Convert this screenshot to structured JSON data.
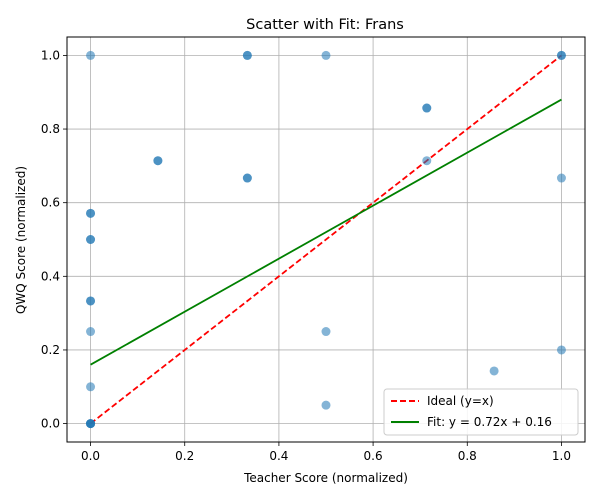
{
  "chart_data": {
    "type": "scatter",
    "title": "Scatter with Fit: Frans",
    "xlabel": "Teacher Score (normalized)",
    "ylabel": "QWQ Score (normalized)",
    "xlim": [
      -0.05,
      1.05
    ],
    "ylim": [
      -0.05,
      1.05
    ],
    "xticks": [
      0.0,
      0.2,
      0.4,
      0.6,
      0.8,
      1.0
    ],
    "yticks": [
      0.0,
      0.2,
      0.4,
      0.6,
      0.8,
      1.0
    ],
    "xtick_labels": [
      "0.0",
      "0.2",
      "0.4",
      "0.6",
      "0.8",
      "1.0"
    ],
    "ytick_labels": [
      "0.0",
      "0.2",
      "0.4",
      "0.6",
      "0.8",
      "1.0"
    ],
    "grid": true,
    "legend_position": "bottom-right",
    "point_color": "#1f77b4",
    "points": [
      {
        "x": 0.0,
        "y": 1.0
      },
      {
        "x": 0.333,
        "y": 1.0
      },
      {
        "x": 0.333,
        "y": 1.0
      },
      {
        "x": 0.5,
        "y": 1.0
      },
      {
        "x": 1.0,
        "y": 1.0
      },
      {
        "x": 1.0,
        "y": 1.0
      },
      {
        "x": 0.714,
        "y": 0.857
      },
      {
        "x": 0.714,
        "y": 0.857
      },
      {
        "x": 0.143,
        "y": 0.714
      },
      {
        "x": 0.143,
        "y": 0.714
      },
      {
        "x": 0.714,
        "y": 0.714
      },
      {
        "x": 0.333,
        "y": 0.667
      },
      {
        "x": 0.333,
        "y": 0.667
      },
      {
        "x": 1.0,
        "y": 0.667
      },
      {
        "x": 0.0,
        "y": 0.571
      },
      {
        "x": 0.0,
        "y": 0.571
      },
      {
        "x": 0.0,
        "y": 0.5
      },
      {
        "x": 0.0,
        "y": 0.5
      },
      {
        "x": 0.0,
        "y": 0.333
      },
      {
        "x": 0.0,
        "y": 0.333
      },
      {
        "x": 0.0,
        "y": 0.25
      },
      {
        "x": 0.5,
        "y": 0.25
      },
      {
        "x": 1.0,
        "y": 0.2
      },
      {
        "x": 0.857,
        "y": 0.143
      },
      {
        "x": 0.0,
        "y": 0.1
      },
      {
        "x": 0.5,
        "y": 0.05
      },
      {
        "x": 0.0,
        "y": 0.0
      },
      {
        "x": 0.0,
        "y": 0.0
      },
      {
        "x": 0.0,
        "y": 0.0
      },
      {
        "x": 0.0,
        "y": 0.0
      }
    ],
    "lines": [
      {
        "name": "Ideal (y=x)",
        "color": "#ff0000",
        "style": "dashed",
        "x": [
          0.0,
          1.0
        ],
        "y": [
          0.0,
          1.0
        ]
      },
      {
        "name": "Fit: y = 0.72x + 0.16",
        "color": "#008000",
        "style": "solid",
        "x": [
          0.0,
          1.0
        ],
        "y": [
          0.16,
          0.88
        ]
      }
    ]
  }
}
